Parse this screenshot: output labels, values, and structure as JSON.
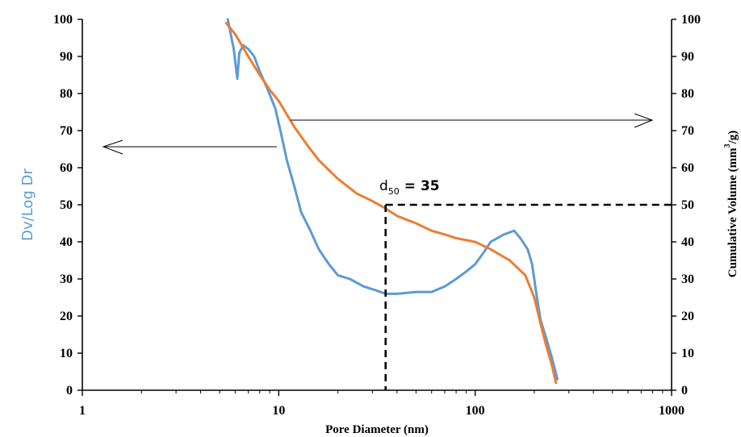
{
  "chart_data": {
    "type": "line",
    "xlabel": "Pore Diameter (nm)",
    "ylabel_left": "Dv/Log Dr",
    "ylabel_right_main": "Cumulative Volume (mm",
    "ylabel_right_sup": "3",
    "ylabel_right_tail": "/g)",
    "x_scale": "log",
    "xlim": [
      1,
      1000
    ],
    "ylim": [
      0,
      100
    ],
    "x_ticks": [
      1,
      10,
      100,
      1000
    ],
    "x_tick_labels": [
      "1",
      "10",
      "100",
      "1000"
    ],
    "y_ticks": [
      0,
      10,
      20,
      30,
      40,
      50,
      60,
      70,
      80,
      90,
      100
    ],
    "y_tick_labels": [
      "0",
      "10",
      "20",
      "30",
      "40",
      "50",
      "60",
      "70",
      "80",
      "90",
      "100"
    ],
    "grid": false,
    "colors": {
      "dv": "#5b9bd5",
      "cumulative": "#ed7d31"
    },
    "series": [
      {
        "key": "dv",
        "x": [
          5.5,
          5.9,
          6.15,
          6.3,
          6.6,
          7.0,
          7.5,
          8.0,
          8.8,
          9.6,
          10.2,
          11.0,
          12.0,
          13.0,
          14.5,
          16.0,
          18.0,
          20.0,
          23.0,
          27.0,
          31.0,
          35.0,
          40.0,
          50.0,
          60.0,
          70.0,
          80.0,
          90.0,
          100.0,
          110.0,
          120.0,
          140.0,
          158.0,
          170.0,
          185.0,
          195.0,
          205.0,
          215.0,
          230.0,
          245.0,
          262.0
        ],
        "y": [
          100,
          92,
          84,
          91,
          93,
          92,
          90,
          86,
          81,
          76,
          70,
          62,
          55,
          48,
          43,
          38,
          34,
          31,
          30,
          28,
          27,
          26,
          26,
          26.5,
          26.5,
          28,
          30,
          32,
          34,
          37,
          40,
          42,
          43,
          41,
          38,
          34,
          26,
          19,
          14,
          9,
          3
        ]
      },
      {
        "key": "cumulative",
        "x": [
          5.4,
          6.0,
          7.0,
          8.0,
          9.0,
          10.0,
          12.0,
          14.0,
          16.0,
          20.0,
          25.0,
          30.0,
          35.0,
          40.0,
          50.0,
          60.0,
          70.0,
          80.0,
          100.0,
          120.0,
          150.0,
          180.0,
          200.0,
          215.0,
          230.0,
          245.0,
          258.0
        ],
        "y": [
          99,
          96,
          90,
          85,
          81,
          78,
          71,
          66,
          62,
          57,
          53,
          51,
          49,
          47,
          45,
          43,
          42,
          41,
          40,
          38,
          35,
          31,
          25,
          18,
          12,
          7,
          2
        ]
      }
    ],
    "annotation": {
      "label": "d",
      "subscript": "50",
      "value": "= 35",
      "x": 35,
      "y": 50
    }
  }
}
